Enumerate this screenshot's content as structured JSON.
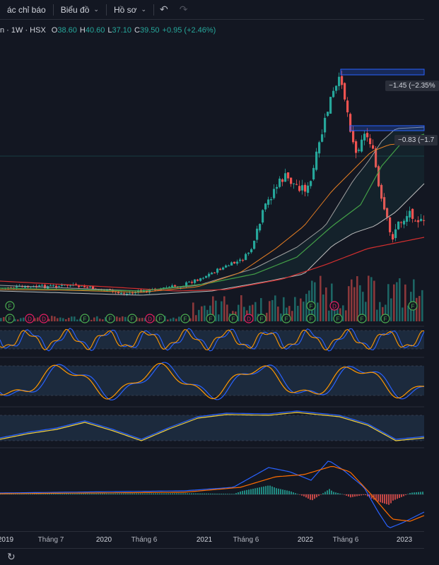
{
  "toolbar": {
    "indicators_label": "ác chỉ báo",
    "charts_label": "Biểu đồ",
    "profile_label": "Hồ sơ",
    "chevron_icon": "chevron-down-icon",
    "undo_icon": "undo-icon",
    "redo_icon": "redo-icon"
  },
  "legend": {
    "symbol": "n · 1W · HSX",
    "open_key": "O",
    "open": "38.60",
    "high_key": "H",
    "high": "40.60",
    "low_key": "L",
    "low": "37.10",
    "close_key": "C",
    "close": "39.50",
    "change": "+0.95 (+2.46%)"
  },
  "annotations": {
    "tag1": "−1.45 (−2.35%",
    "tag2": "−0.83 (−1.7"
  },
  "markers": {
    "f": "F",
    "d": "D"
  },
  "x_axis": {
    "labels": [
      "2019",
      "Tháng 7",
      "2020",
      "Tháng 6",
      "2021",
      "Tháng 6",
      "2022",
      "Tháng 6",
      "2023"
    ]
  },
  "colors": {
    "background": "#131722",
    "up": "#26a69a",
    "down": "#ef5350",
    "accent": "#2962ff",
    "yellow": "#f5d547"
  },
  "footer": {
    "refresh_icon": "refresh-icon"
  },
  "chart_data": {
    "type": "line",
    "title": "",
    "timeframe": "1W",
    "x": [
      "2019",
      "2019-04",
      "2019-07",
      "2019-10",
      "2020",
      "2020-03",
      "2020-06",
      "2020-09",
      "2021",
      "2021-03",
      "2021-06",
      "2021-09",
      "2022",
      "2022-03",
      "2022-06",
      "2022-09",
      "2023"
    ],
    "series": [
      {
        "values": [
          9,
          9.5,
          10,
          9.5,
          9,
          8.5,
          8.5,
          10,
          12,
          16,
          21,
          30,
          36,
          58,
          40,
          25,
          27
        ]
      }
    ],
    "ylim": [
      5,
      62
    ],
    "grid": true
  }
}
